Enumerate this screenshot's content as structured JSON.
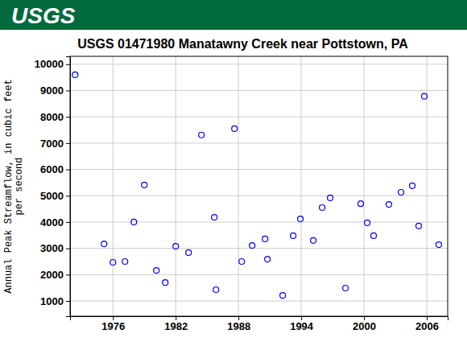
{
  "header": {
    "logo": "USGS"
  },
  "chart_data": {
    "type": "scatter",
    "title": "USGS 01471980 Manatawny Creek near Pottstown, PA",
    "y_label": [
      "Annual Peak Streamflow, in cubic feet",
      "per second"
    ],
    "x": [
      1972.38,
      1975.15,
      1976.0,
      1977.15,
      1978.0,
      1979.0,
      1980.15,
      1981.0,
      1982.0,
      1983.23,
      1984.46,
      1985.69,
      1985.85,
      1987.62,
      1988.31,
      1989.31,
      1990.54,
      1990.77,
      1992.23,
      1993.23,
      1993.92,
      1995.15,
      1996.0,
      1996.77,
      1998.23,
      1999.69,
      2000.31,
      2000.92,
      2002.38,
      2003.54,
      2004.62,
      2005.23,
      2005.77,
      2007.15
    ],
    "values": [
      9600,
      3170,
      2470,
      2500,
      4000,
      5410,
      2160,
      1700,
      3080,
      2840,
      7310,
      4180,
      1430,
      7550,
      2500,
      3110,
      3360,
      2590,
      1210,
      3480,
      4120,
      3300,
      4550,
      4920,
      1490,
      4700,
      3970,
      3480,
      4670,
      5130,
      5380,
      3850,
      8780,
      3140
    ],
    "color": "#0000ff",
    "marker": "circle-open",
    "xlim": [
      1971.9,
      2008
    ],
    "xticks": [
      1976,
      1982,
      1988,
      1994,
      2000,
      2006
    ],
    "ylim": [
      420,
      10300
    ],
    "yticks": [
      1000,
      2000,
      3000,
      4000,
      5000,
      6000,
      7000,
      8000,
      9000,
      10000
    ],
    "grid": true
  }
}
